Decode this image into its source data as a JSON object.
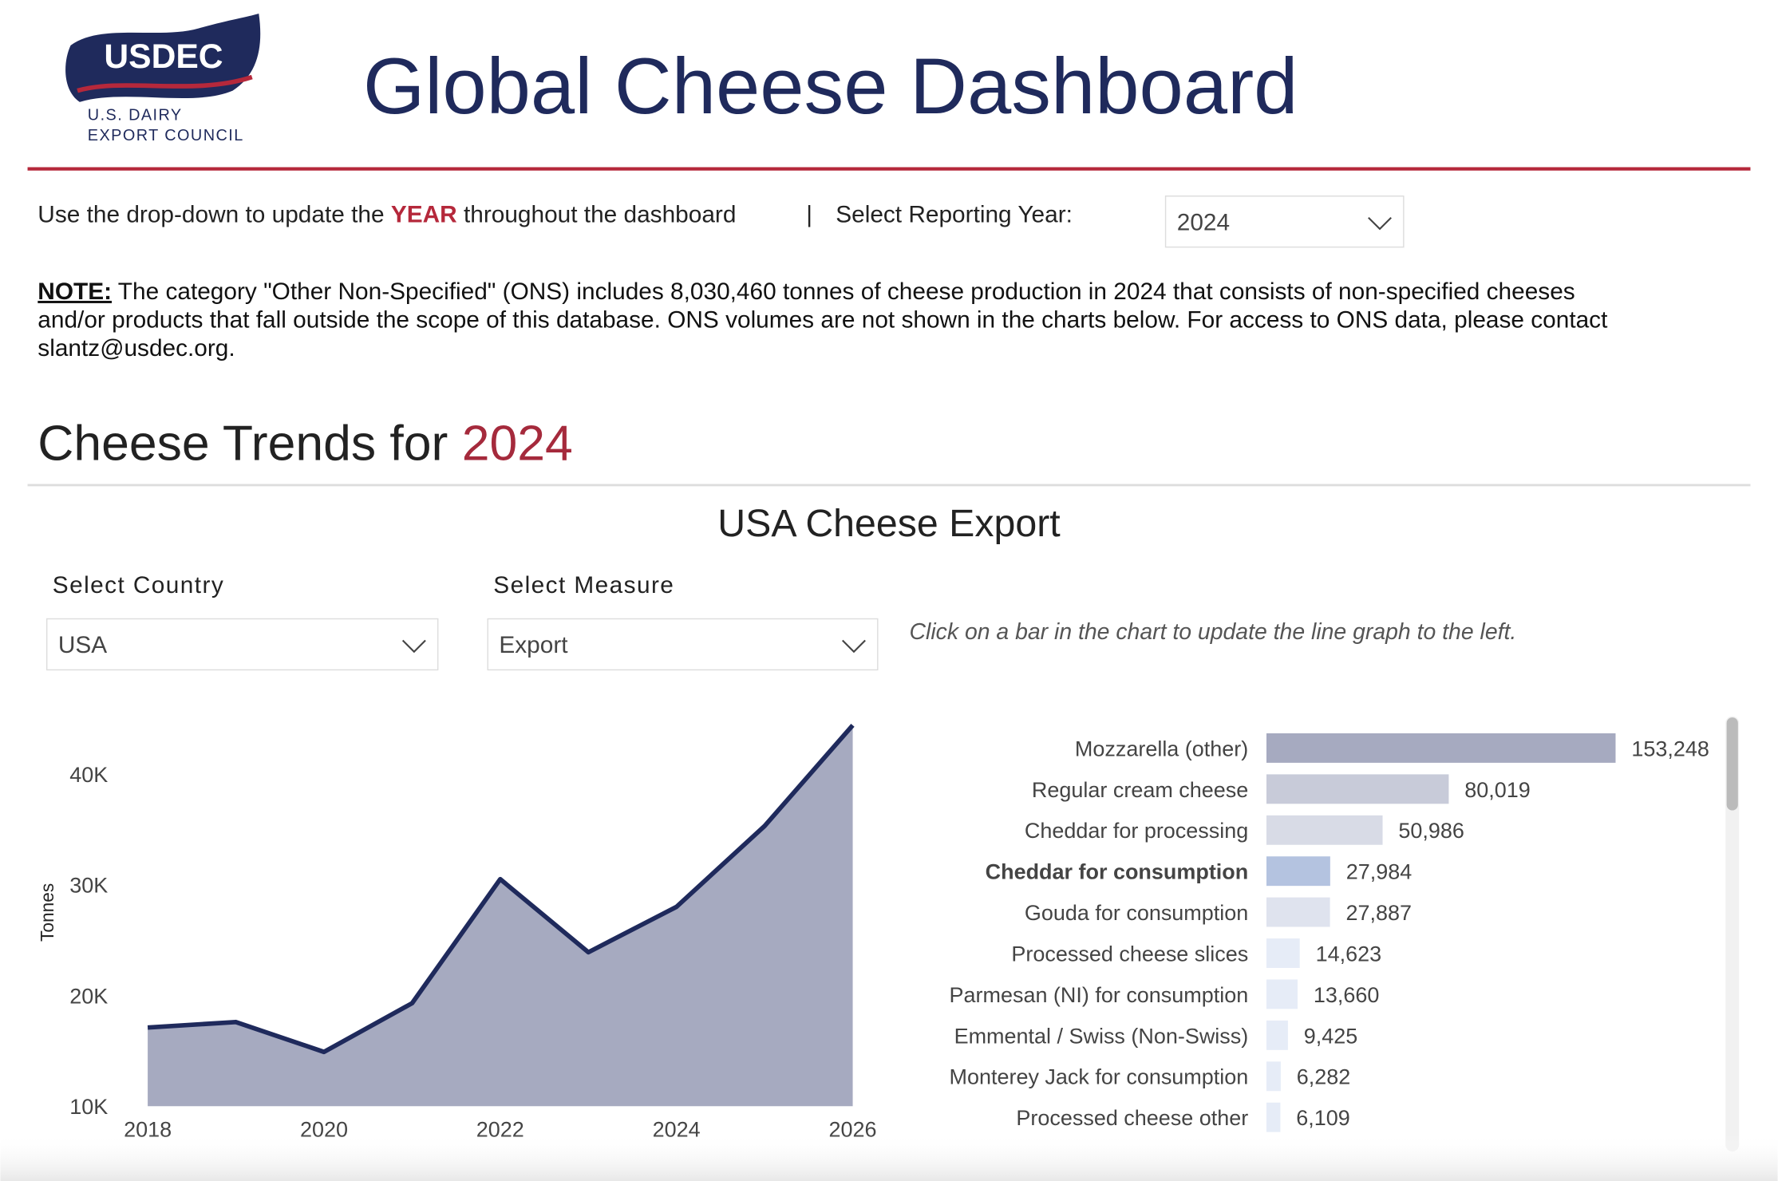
{
  "header": {
    "logo": {
      "name": "USDEC",
      "line1": "U.S. DAIRY",
      "line2": "EXPORT COUNCIL"
    },
    "title": "Global Cheese Dashboard"
  },
  "controls": {
    "intro": "Use the drop-down to update the ",
    "keyword": "YEAR",
    "intro_end": " throughout the dashboard",
    "separator": "|",
    "year_label": "Select Reporting Year:",
    "year_value": "2024"
  },
  "note": {
    "label": "NOTE:",
    "lines": [
      " The category \"Other Non-Specified\" (ONS) includes 8,030,460 tonnes of cheese production in 2024 that consists of non-specified cheeses",
      "and/or products that fall outside the scope of this database. ONS volumes are not shown in the charts below. For access to ONS data, please contact",
      "slantz@usdec.org."
    ]
  },
  "section": {
    "title": "Cheese Trends for ",
    "year": "2024"
  },
  "panel": {
    "title": "USA Cheese Export",
    "country_label": "Select Country",
    "country_value": "USA",
    "measure_label": "Select Measure",
    "measure_value": "Export",
    "hint": "Click on a bar in the chart to update the line graph to the left."
  },
  "chart_data": [
    {
      "type": "area",
      "y_label": "Tonnes",
      "x": [
        2018,
        2019,
        2020,
        2021,
        2022,
        2023,
        2024,
        2025,
        2026
      ],
      "values": [
        17100,
        17600,
        14900,
        19300,
        30500,
        23900,
        28000,
        35300,
        44400
      ],
      "color": "#1f2a5c",
      "fill": "#a6aac0",
      "xlim": [
        2018,
        2026
      ],
      "xticks": [
        2018,
        2020,
        2022,
        2024,
        2026
      ],
      "ylim": [
        10000,
        45000
      ],
      "yticks": [
        {
          "value": 10000,
          "label": "10K"
        },
        {
          "value": 20000,
          "label": "20K"
        },
        {
          "value": 30000,
          "label": "30K"
        },
        {
          "value": 40000,
          "label": "40K"
        }
      ]
    },
    {
      "type": "hbar",
      "categories": [
        "Mozzarella (other)",
        "Regular cream cheese",
        "Cheddar for processing",
        "Cheddar for consumption",
        "Gouda for consumption",
        "Processed cheese slices",
        "Parmesan (NI) for consumption",
        "Emmental / Swiss (Non-Swiss)",
        "Monterey Jack for consumption",
        "Processed cheese other"
      ],
      "values": [
        153248,
        80019,
        50986,
        27984,
        27887,
        14623,
        13660,
        9425,
        6282,
        6109
      ],
      "value_labels": [
        "153,248",
        "80,019",
        "50,986",
        "27,984",
        "27,887",
        "14,623",
        "13,660",
        "9,425",
        "6,282",
        "6,109"
      ],
      "colors": [
        "#a6aac0",
        "#c8cbd9",
        "#d8dbe6",
        "#b4c3e0",
        "#dfe3ee",
        "#e6ecf7",
        "#e6ecf7",
        "#e6ecf7",
        "#e6ecf7",
        "#e6ecf7"
      ],
      "selected_index": 3,
      "xlim": [
        0,
        160000
      ]
    }
  ]
}
